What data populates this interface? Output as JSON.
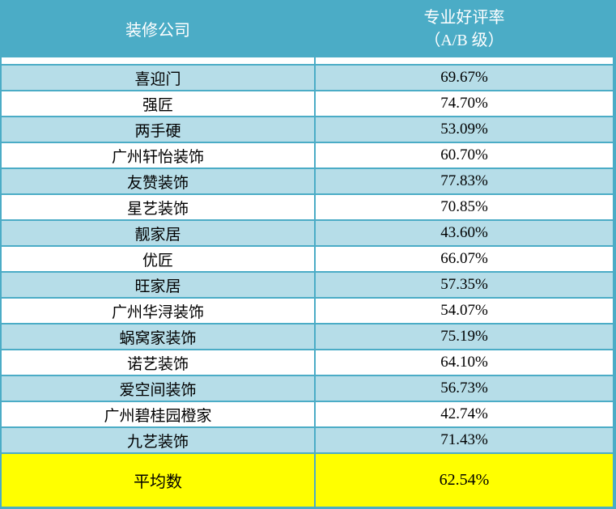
{
  "table": {
    "header": {
      "company_label": "装修公司",
      "rate_label_line1": "专业好评率",
      "rate_label_line2": "（A/B 级）"
    },
    "rows": [
      {
        "company": "喜迎门",
        "rate": "69.67%"
      },
      {
        "company": "强匠",
        "rate": "74.70%"
      },
      {
        "company": "两手硬",
        "rate": "53.09%"
      },
      {
        "company": "广州轩怡装饰",
        "rate": "60.70%"
      },
      {
        "company": "友赞装饰",
        "rate": "77.83%"
      },
      {
        "company": "星艺装饰",
        "rate": "70.85%"
      },
      {
        "company": "靓家居",
        "rate": "43.60%"
      },
      {
        "company": "优匠",
        "rate": "66.07%"
      },
      {
        "company": "旺家居",
        "rate": "57.35%"
      },
      {
        "company": "广州华浔装饰",
        "rate": "54.07%"
      },
      {
        "company": "蜗窝家装饰",
        "rate": "75.19%"
      },
      {
        "company": "诺艺装饰",
        "rate": "64.10%"
      },
      {
        "company": "爱空间装饰",
        "rate": "56.73%"
      },
      {
        "company": "广州碧桂园橙家",
        "rate": "42.74%"
      },
      {
        "company": "九艺装饰",
        "rate": "71.43%"
      }
    ],
    "summary": {
      "label": "平均数",
      "rate": "62.54%"
    }
  },
  "colors": {
    "header_bg": "#4BACC6",
    "banded_row_bg": "#B6DDE8",
    "plain_row_bg": "#FFFFFF",
    "border": "#4BACC6",
    "summary_bg": "#FFFF00",
    "header_text": "#FFFFFF",
    "body_text": "#000000"
  },
  "chart_data": {
    "type": "table",
    "title": "装修公司专业好评率（A/B 级）",
    "columns": [
      "装修公司",
      "专业好评率（A/B 级）"
    ],
    "rows": [
      [
        "喜迎门",
        69.67
      ],
      [
        "强匠",
        74.7
      ],
      [
        "两手硬",
        53.09
      ],
      [
        "广州轩怡装饰",
        60.7
      ],
      [
        "友赞装饰",
        77.83
      ],
      [
        "星艺装饰",
        70.85
      ],
      [
        "靓家居",
        43.6
      ],
      [
        "优匠",
        66.07
      ],
      [
        "旺家居",
        57.35
      ],
      [
        "广州华浔装饰",
        54.07
      ],
      [
        "蜗窝家装饰",
        75.19
      ],
      [
        "诺艺装饰",
        64.1
      ],
      [
        "爱空间装饰",
        56.73
      ],
      [
        "广州碧桂园橙家",
        42.74
      ],
      [
        "九艺装饰",
        71.43
      ]
    ],
    "summary_row": [
      "平均数",
      62.54
    ],
    "value_unit": "%",
    "layout": "banded rows (light blue / white), teal header, yellow summary row"
  }
}
